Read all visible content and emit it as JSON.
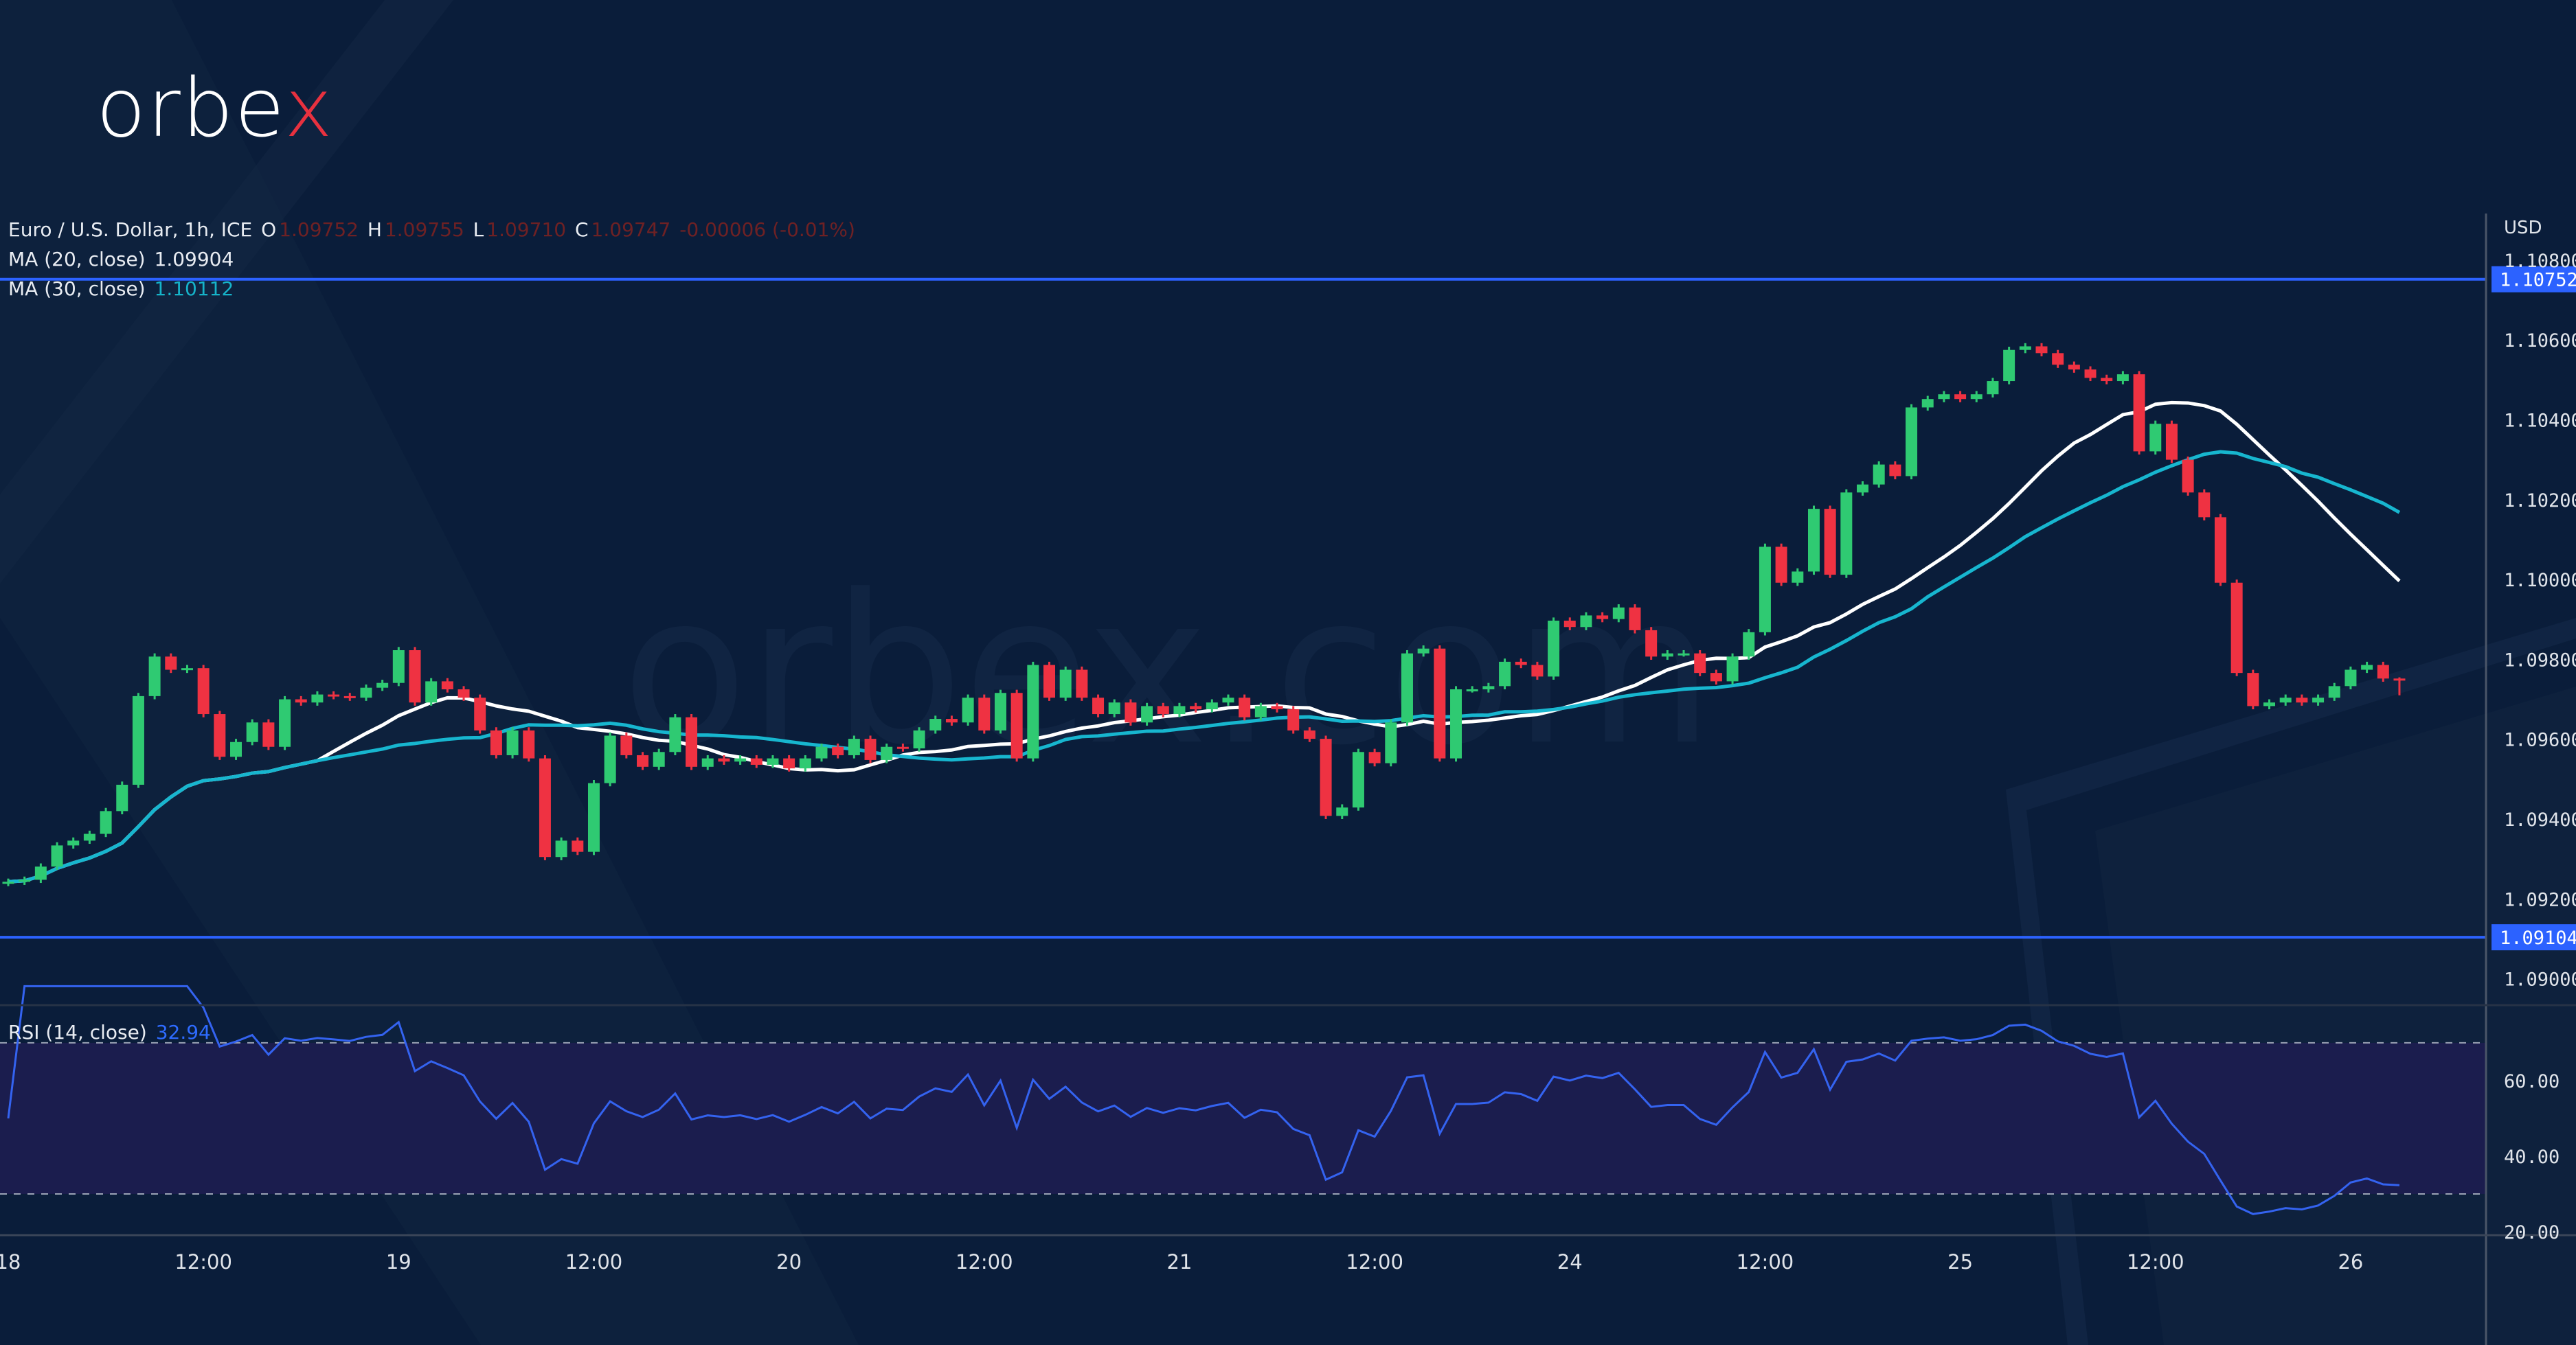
{
  "logo": {
    "main": "orbe",
    "accent": "x"
  },
  "watermark": "orbex.com",
  "legend": {
    "symbol": "Euro / U.S. Dollar, 1h, ICE",
    "o_label": "O",
    "o": "1.09752",
    "h_label": "H",
    "h": "1.09755",
    "l_label": "L",
    "l": "1.09710",
    "c_label": "C",
    "c": "1.09747",
    "change": "-0.00006 (-0.01%)",
    "ma20_label": "MA (20, close)",
    "ma20_value": "1.09904",
    "ma30_label": "MA (30, close)",
    "ma30_value": "1.10112"
  },
  "rsi": {
    "label": "RSI (14, close)",
    "value": "32.94"
  },
  "currency": "USD",
  "colors": {
    "background": "#0a1d3a",
    "up": "#2fca72",
    "down": "#ef3242",
    "ma20": "#ffffff",
    "ma30": "#17b6cf",
    "rsi_line": "#3463f0",
    "rsi_band": "#1b1d4e",
    "level_line": "#2c62ff"
  },
  "chart_data": {
    "type": "candlestick",
    "interval": "1h",
    "open_first": 1.0924,
    "close": [
      1.09243,
      1.09248,
      1.09281,
      1.09334,
      1.09346,
      1.09363,
      1.0942,
      1.09486,
      1.09708,
      1.09807,
      1.09774,
      1.09778,
      1.09663,
      1.09556,
      1.09593,
      1.09642,
      1.09581,
      1.097,
      1.09692,
      1.09712,
      1.09708,
      1.09704,
      1.09729,
      1.09741,
      1.09823,
      1.09692,
      1.09745,
      1.09725,
      1.09704,
      1.09622,
      1.0956,
      1.09622,
      1.09552,
      1.09305,
      1.09346,
      1.09318,
      1.0949,
      1.09609,
      1.0956,
      1.09531,
      1.09568,
      1.09655,
      1.09531,
      1.09552,
      1.09544,
      1.09552,
      1.09536,
      1.09552,
      1.09527,
      1.09552,
      1.09581,
      1.0956,
      1.09601,
      1.09548,
      1.09581,
      1.09577,
      1.09622,
      1.09651,
      1.09642,
      1.09704,
      1.09622,
      1.09716,
      1.09552,
      1.09786,
      1.09704,
      1.09774,
      1.09704,
      1.09663,
      1.09692,
      1.09642,
      1.09683,
      1.09663,
      1.09683,
      1.09675,
      1.09692,
      1.09704,
      1.09655,
      1.09683,
      1.09675,
      1.09622,
      1.09601,
      1.09408,
      1.09429,
      1.09568,
      1.0954,
      1.09642,
      1.09815,
      1.09827,
      1.09552,
      1.09725,
      1.09725,
      1.09733,
      1.09794,
      1.09786,
      1.09757,
      1.09897,
      1.09881,
      1.0991,
      1.09901,
      1.0993,
      1.09873,
      1.09807,
      1.09815,
      1.09815,
      1.09766,
      1.09745,
      1.09807,
      1.09868,
      1.10082,
      1.09992,
      1.1002,
      1.10177,
      1.10012,
      1.10218,
      1.10238,
      1.10288,
      1.10259,
      1.10431,
      1.10452,
      1.10464,
      1.10452,
      1.10464,
      1.10497,
      1.10575,
      1.10584,
      1.10567,
      1.10538,
      1.10526,
      1.10505,
      1.10497,
      1.10514,
      1.10321,
      1.1039,
      1.103,
      1.10218,
      1.10156,
      1.09992,
      1.09766,
      1.09683,
      1.09692,
      1.09704,
      1.09692,
      1.09704,
      1.09733,
      1.09774,
      1.09786,
      1.09752,
      1.09747
    ],
    "last_candle": {
      "open": 1.09752,
      "high": 1.09755,
      "low": 1.0971,
      "close": 1.09747
    },
    "x_tick_labels": [
      "18",
      "12:00",
      "19",
      "12:00",
      "20",
      "12:00",
      "21",
      "12:00",
      "24",
      "12:00",
      "25",
      "12:00",
      "26"
    ],
    "x_tick_every_hours": 12,
    "price_ticks": [
      "1.09000",
      "1.09200",
      "1.09400",
      "1.09600",
      "1.09800",
      "1.10000",
      "1.10200",
      "1.10400",
      "1.10600",
      "1.10800"
    ],
    "levels": [
      {
        "value": 1.10752,
        "label": "1.10752"
      },
      {
        "value": 1.09104,
        "label": "1.09104"
      }
    ],
    "moving_averages": [
      {
        "name": "MA (20, close)",
        "period": 20
      },
      {
        "name": "MA (30, close)",
        "period": 30
      }
    ],
    "rsi_period": 14,
    "rsi_ticks": [
      "20.00",
      "40.00",
      "60.00"
    ],
    "rsi_bands": [
      30,
      70
    ],
    "grid": false
  }
}
